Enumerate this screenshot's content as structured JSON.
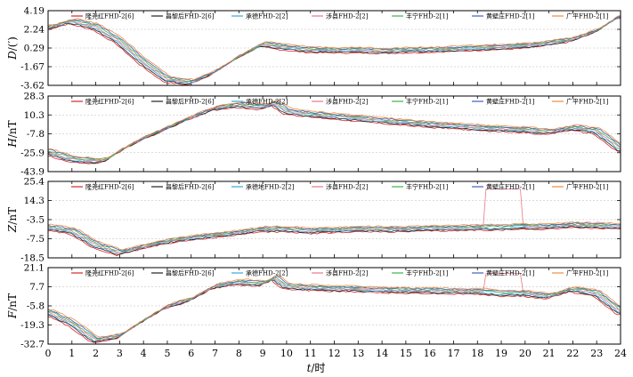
{
  "chart_data": {
    "type": "line",
    "x_axis": {
      "label_var": "t",
      "label_unit": "/时",
      "ticks": [
        0,
        1,
        2,
        3,
        4,
        5,
        6,
        7,
        8,
        9,
        10,
        11,
        12,
        13,
        14,
        15,
        16,
        17,
        18,
        19,
        20,
        21,
        22,
        23,
        24
      ],
      "range": [
        0,
        24
      ]
    },
    "legend": {
      "placement": "top",
      "entries": [
        {
          "label": "隆尧红FHD-2[6]",
          "color": "#d62728"
        },
        {
          "label": "昌黎后FHD-2[6]",
          "color": "#222222"
        },
        {
          "label": "承德FHD-2[2]",
          "color": "#3aa8d8"
        },
        {
          "label": "涉县FHD-2[2]",
          "color": "#e6788c"
        },
        {
          "label": "丰宁FHD-2[1]",
          "color": "#3cb44b"
        },
        {
          "label": "黄壁庄FHD-2[1]",
          "color": "#3f5fbf"
        },
        {
          "label": "广平FHD-2[1]",
          "color": "#f08c3c"
        }
      ],
      "entries_panel3": [
        {
          "label": "隆尧红FHD-2[6]",
          "color": "#d62728"
        },
        {
          "label": "昌黎后FHD-2[6]",
          "color": "#222222"
        },
        {
          "label": "承德地FHD-2[2]",
          "color": "#3aa8d8"
        },
        {
          "label": "涉县FHD-2[2]",
          "color": "#e6788c"
        },
        {
          "label": "丰宁FHD-2[1]",
          "color": "#3cb44b"
        },
        {
          "label": "黄壁庄FHD-2[1]",
          "color": "#3f5fbf"
        },
        {
          "label": "广平FHD-2[1]",
          "color": "#f08c3c"
        }
      ]
    },
    "panels": [
      {
        "name": "D",
        "ylabel_var": "D",
        "ylabel_unit": "/(′)",
        "yticks": [
          "4.19",
          "2.24",
          "0.29",
          "-1.67",
          "-3.62"
        ],
        "ylim": [
          -3.62,
          4.19
        ],
        "shape": [
          [
            0,
            2.4
          ],
          [
            1,
            3.1
          ],
          [
            2,
            2.5
          ],
          [
            3,
            1.0
          ],
          [
            4,
            -1.2
          ],
          [
            5,
            -3.0
          ],
          [
            6,
            -3.3
          ],
          [
            7,
            -2.2
          ],
          [
            8,
            -0.6
          ],
          [
            9,
            0.7
          ],
          [
            10,
            0.35
          ],
          [
            11,
            0.1
          ],
          [
            12,
            0.05
          ],
          [
            13,
            0.05
          ],
          [
            14,
            0.0
          ],
          [
            15,
            0.05
          ],
          [
            16,
            0.1
          ],
          [
            17,
            0.2
          ],
          [
            18,
            0.3
          ],
          [
            19,
            0.4
          ],
          [
            20,
            0.5
          ],
          [
            21,
            0.8
          ],
          [
            22,
            1.2
          ],
          [
            23,
            2.1
          ],
          [
            24,
            3.7
          ]
        ]
      },
      {
        "name": "H",
        "ylabel_var": "H",
        "ylabel_unit": "/nT",
        "yticks": [
          "28.3",
          "10.3",
          "-7.8",
          "-25.9",
          "-43.9"
        ],
        "ylim": [
          -43.9,
          28.3
        ],
        "shape": [
          [
            0,
            -25.0
          ],
          [
            1,
            -32.0
          ],
          [
            2,
            -34.0
          ],
          [
            2.5,
            -32.0
          ],
          [
            3,
            -24.0
          ],
          [
            4,
            -12.0
          ],
          [
            5,
            -2.0
          ],
          [
            6,
            8.0
          ],
          [
            7,
            17.0
          ],
          [
            8,
            20.0
          ],
          [
            9,
            18.0
          ],
          [
            9.5,
            21.5
          ],
          [
            10,
            14.0
          ],
          [
            11,
            11.0
          ],
          [
            12,
            9.0
          ],
          [
            13,
            7.0
          ],
          [
            14,
            5.0
          ],
          [
            15,
            3.0
          ],
          [
            16,
            1.0
          ],
          [
            17,
            0.0
          ],
          [
            18,
            -2.0
          ],
          [
            19,
            -3.0
          ],
          [
            20,
            -4.0
          ],
          [
            21,
            -6.0
          ],
          [
            22,
            -2.0
          ],
          [
            23,
            -5.0
          ],
          [
            24,
            -22.0
          ]
        ]
      },
      {
        "name": "Z",
        "ylabel_var": "Z",
        "ylabel_unit": "/nT",
        "yticks": [
          "25.4",
          "14.3",
          "-3.5",
          "-7.5",
          "-18.5"
        ],
        "ylim": [
          -18.5,
          25.4
        ],
        "spike": {
          "series": "涉县FHD-2[2]",
          "x_range": [
            18.3,
            19.8
          ],
          "value": 21.0
        },
        "shape": [
          [
            0,
            -1.0
          ],
          [
            1,
            -3.0
          ],
          [
            2,
            -11.0
          ],
          [
            3,
            -15.5
          ],
          [
            4,
            -12.0
          ],
          [
            5,
            -9.0
          ],
          [
            6,
            -7.0
          ],
          [
            7,
            -5.5
          ],
          [
            8,
            -4.0
          ],
          [
            9,
            -2.0
          ],
          [
            10,
            -2.0
          ],
          [
            11,
            -3.0
          ],
          [
            12,
            -2.5
          ],
          [
            13,
            -2.0
          ],
          [
            14,
            -2.0
          ],
          [
            15,
            -2.0
          ],
          [
            16,
            -1.5
          ],
          [
            17,
            -1.5
          ],
          [
            18,
            -1.0
          ],
          [
            19,
            -1.0
          ],
          [
            20,
            -0.5
          ],
          [
            21,
            -0.5
          ],
          [
            22,
            0.5
          ],
          [
            23,
            0.0
          ],
          [
            24,
            -0.5
          ]
        ]
      },
      {
        "name": "F",
        "ylabel_var": "F",
        "ylabel_unit": "/nT",
        "yticks": [
          "21.1",
          "7.7",
          "-5.8",
          "-19.3",
          "-32.7"
        ],
        "ylim": [
          -32.7,
          21.1
        ],
        "spike": {
          "series": "涉县FHD-2[2]",
          "x_range": [
            18.3,
            19.8
          ],
          "value": 17.0
        },
        "shape": [
          [
            0,
            -10.0
          ],
          [
            1,
            -18.0
          ],
          [
            2,
            -30.0
          ],
          [
            3,
            -27.0
          ],
          [
            4,
            -16.0
          ],
          [
            5,
            -6.0
          ],
          [
            6,
            -1.0
          ],
          [
            7,
            8.0
          ],
          [
            8,
            11.0
          ],
          [
            9,
            10.0
          ],
          [
            9.5,
            14.0
          ],
          [
            10,
            8.0
          ],
          [
            11,
            7.0
          ],
          [
            12,
            6.5
          ],
          [
            13,
            6.0
          ],
          [
            14,
            5.5
          ],
          [
            15,
            5.0
          ],
          [
            16,
            5.0
          ],
          [
            17,
            4.5
          ],
          [
            18,
            4.5
          ],
          [
            19,
            3.0
          ],
          [
            20,
            3.0
          ],
          [
            21,
            1.0
          ],
          [
            22,
            6.0
          ],
          [
            23,
            3.0
          ],
          [
            24,
            -10.0
          ]
        ]
      }
    ]
  }
}
